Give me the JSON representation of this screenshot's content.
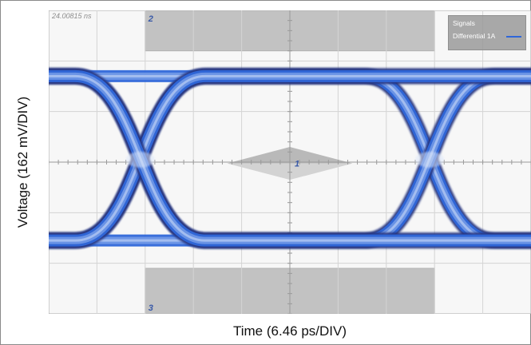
{
  "chart_data": {
    "type": "scatter",
    "title": "",
    "xlabel": "Time (6.46 ps/DIV)",
    "ylabel": "Voltage (162 mV/DIV)",
    "x_div_ps": 6.46,
    "y_div_mV": 162,
    "xlim_div": [
      0,
      10
    ],
    "ylim_div": [
      -3,
      3
    ],
    "grid": true,
    "timestamp": "24.00815 ns",
    "legend": {
      "title": "Signals",
      "entries": [
        "Differential 1A"
      ],
      "placement": "top-right"
    },
    "series": [
      {
        "name": "Differential 1A",
        "eye_levels_div": [
          -1.55,
          1.7
        ],
        "crossings_div": [
          {
            "x": 1.9,
            "y": 0.05
          },
          {
            "x": 7.9,
            "y": 0.05
          }
        ],
        "color": "#2f67d9"
      }
    ],
    "masks": [
      {
        "label": "1",
        "type": "inner-diamond",
        "x_div": [
          3.7,
          6.3
        ],
        "y_div": [
          -0.35,
          0.3
        ]
      },
      {
        "label": "2",
        "type": "upper-limit",
        "x_div": [
          2.0,
          8.0
        ],
        "y_div": [
          2.2,
          3.0
        ]
      },
      {
        "label": "3",
        "type": "lower-limit",
        "x_div": [
          2.0,
          8.0
        ],
        "y_div": [
          -3.0,
          -2.1
        ]
      }
    ]
  }
}
